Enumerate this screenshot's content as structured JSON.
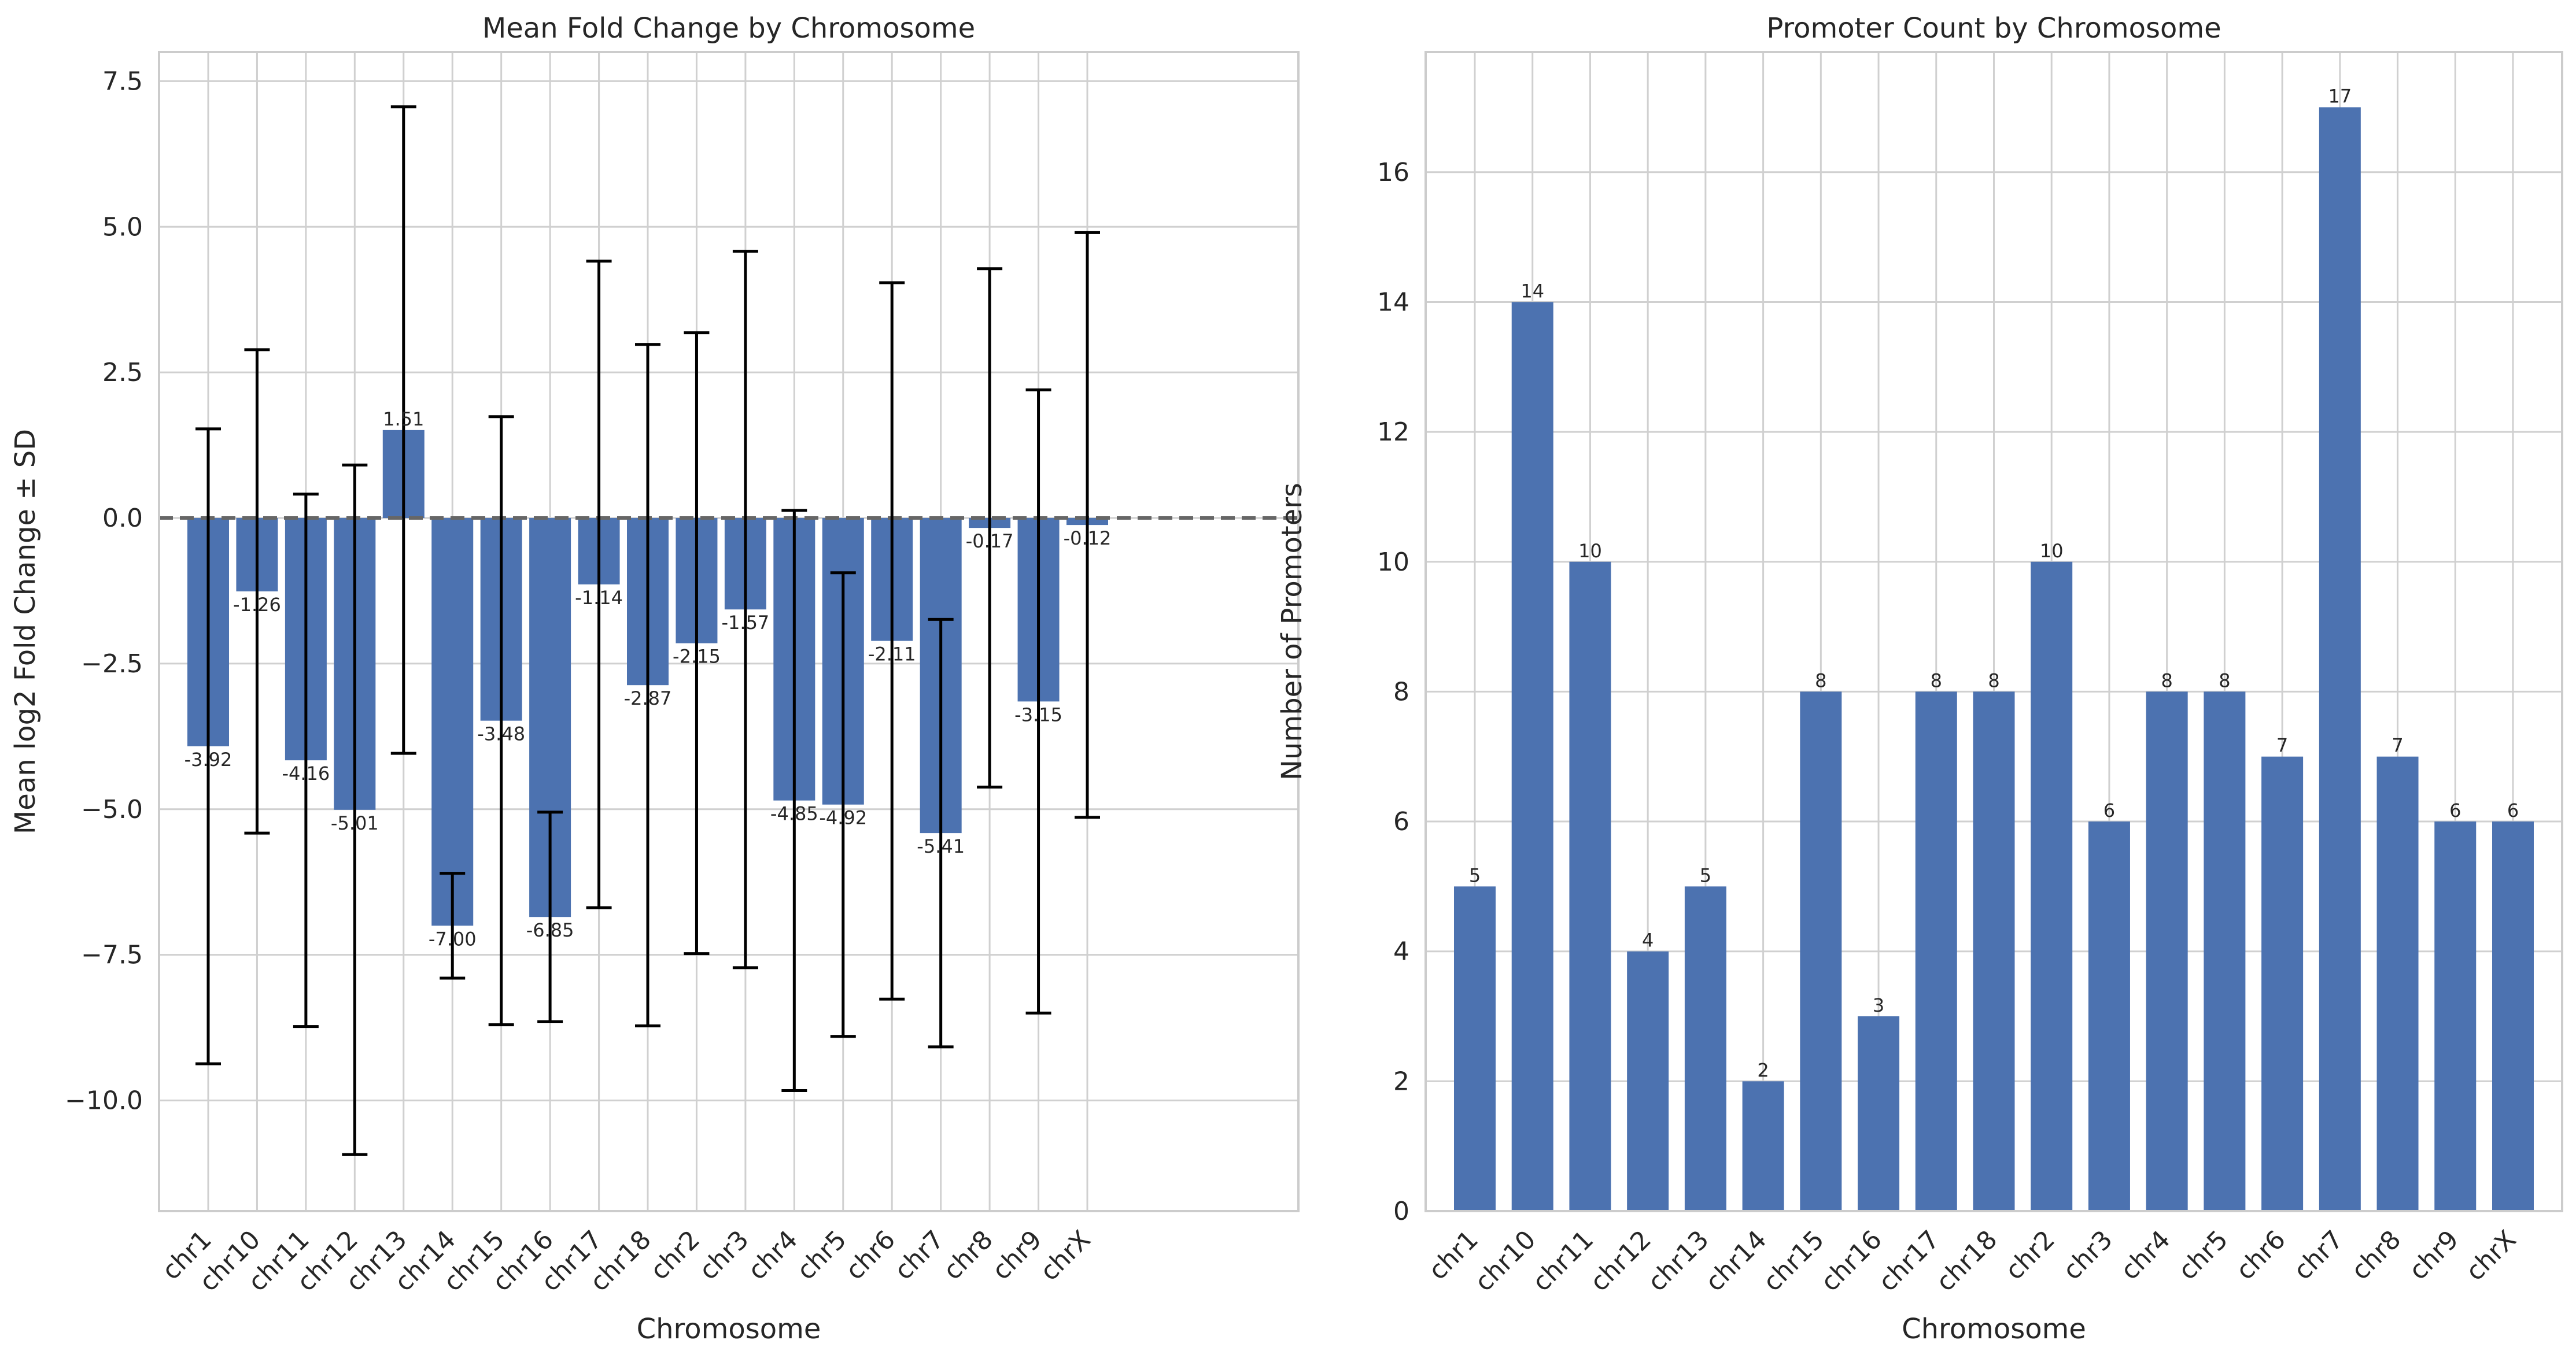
{
  "chart_data": [
    {
      "type": "bar",
      "title": "Mean Fold Change by Chromosome",
      "xlabel": "Chromosome",
      "ylabel": "Mean log2 Fold Change ± SD",
      "categories": [
        "chr1",
        "chr10",
        "chr11",
        "chr12",
        "chr13",
        "chr14",
        "chr15",
        "chr16",
        "chr17",
        "chr18",
        "chr2",
        "chr3",
        "chr4",
        "chr5",
        "chr6",
        "chr7",
        "chr8",
        "chr9",
        "chrX"
      ],
      "values": [
        -3.92,
        -1.26,
        -4.16,
        -5.01,
        1.51,
        -7.0,
        -3.48,
        -6.85,
        -1.14,
        -2.87,
        -2.15,
        -1.57,
        -4.85,
        -4.92,
        -2.11,
        -5.41,
        -0.17,
        -3.15,
        -0.12
      ],
      "value_labels": [
        "-3.92",
        "-1.26",
        "-4.16",
        "-5.01",
        "1.51",
        "-7.00",
        "-3.48",
        "-6.85",
        "-1.14",
        "-2.87",
        "-2.15",
        "-1.57",
        "-4.85",
        "-4.92",
        "-2.11",
        "-5.41",
        "-0.17",
        "-3.15",
        "-0.12"
      ],
      "error": [
        5.45,
        4.15,
        4.57,
        5.92,
        5.55,
        0.9,
        5.22,
        1.8,
        5.55,
        5.85,
        5.33,
        6.15,
        4.98,
        3.98,
        6.15,
        3.67,
        4.45,
        5.35,
        5.02
      ],
      "yticks": [
        -10.0,
        -7.5,
        -5.0,
        -2.5,
        0.0,
        2.5,
        5.0,
        7.5
      ],
      "ytick_labels": [
        "−10.0",
        "−7.5",
        "−5.0",
        "−2.5",
        "0.0",
        "2.5",
        "5.0",
        "7.5"
      ],
      "ylim": [
        -11.9,
        8.0
      ],
      "reference_line": 0,
      "grid": true,
      "bar_color": "#4c72b0",
      "error_color": "#000000",
      "reference_line_color": "#666666"
    },
    {
      "type": "bar",
      "title": "Promoter Count by Chromosome",
      "xlabel": "Chromosome",
      "ylabel": "Number of Promoters",
      "categories": [
        "chr1",
        "chr10",
        "chr11",
        "chr12",
        "chr13",
        "chr14",
        "chr15",
        "chr16",
        "chr17",
        "chr18",
        "chr2",
        "chr3",
        "chr4",
        "chr5",
        "chr6",
        "chr7",
        "chr8",
        "chr9",
        "chrX"
      ],
      "values": [
        5,
        14,
        10,
        4,
        5,
        2,
        8,
        3,
        8,
        8,
        10,
        6,
        8,
        8,
        7,
        17,
        7,
        6,
        6
      ],
      "value_labels": [
        "5",
        "14",
        "10",
        "4",
        "5",
        "2",
        "8",
        "3",
        "8",
        "8",
        "10",
        "6",
        "8",
        "8",
        "7",
        "17",
        "7",
        "6",
        "6"
      ],
      "yticks": [
        0,
        2,
        4,
        6,
        8,
        10,
        12,
        14,
        16
      ],
      "ytick_labels": [
        "0",
        "2",
        "4",
        "6",
        "8",
        "10",
        "12",
        "14",
        "16"
      ],
      "ylim": [
        0,
        17.85
      ],
      "grid": true,
      "bar_color": "#4c72b0"
    }
  ]
}
